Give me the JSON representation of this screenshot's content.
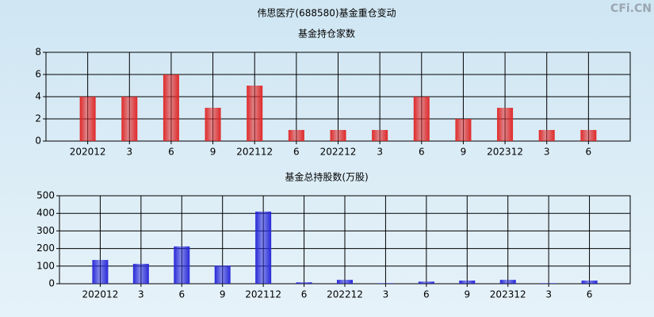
{
  "title": "伟思医疗(688580)基金重仓变动",
  "watermark": "CFi.CN",
  "chart_data": [
    {
      "type": "bar",
      "title": "基金持仓家数",
      "categories": [
        "202012",
        "3",
        "6",
        "9",
        "202112",
        "6",
        "202212",
        "3",
        "6",
        "9",
        "202312",
        "3",
        "6"
      ],
      "values": [
        4,
        4,
        6,
        3,
        5,
        1,
        1,
        1,
        4,
        2,
        3,
        1,
        1
      ],
      "color": "#e02828",
      "ylim": [
        0,
        8
      ],
      "yticks": [
        0,
        2,
        4,
        6,
        8
      ],
      "grid": true
    },
    {
      "type": "bar",
      "title": "基金总持股数(万股)",
      "categories": [
        "202012",
        "3",
        "6",
        "9",
        "202112",
        "6",
        "202212",
        "3",
        "6",
        "9",
        "202312",
        "3",
        "6"
      ],
      "values": [
        135,
        113,
        212,
        103,
        410,
        8,
        22,
        3,
        12,
        18,
        22,
        3,
        18
      ],
      "color": "#2828d8",
      "ylim": [
        0,
        500
      ],
      "yticks": [
        0,
        100,
        200,
        300,
        400,
        500
      ],
      "grid": true
    }
  ]
}
